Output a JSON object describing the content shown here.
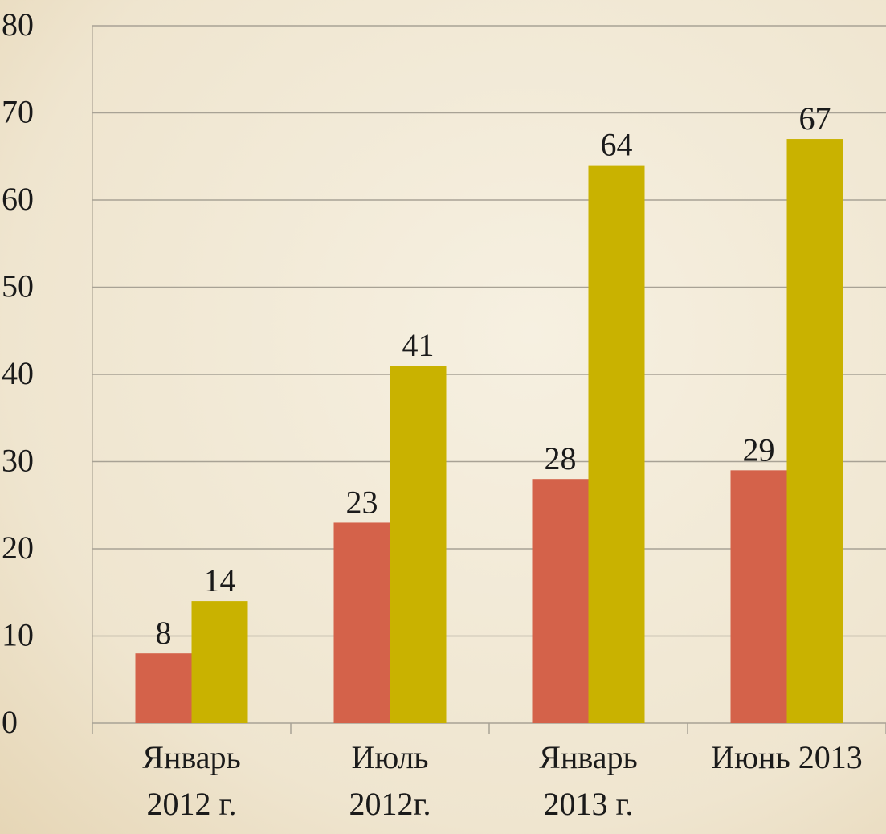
{
  "chart_data": {
    "type": "bar",
    "categories": [
      "Январь\n2012 г.",
      "Июль\n2012г.",
      "Январь\n2013 г.",
      "Июнь 2013"
    ],
    "series": [
      {
        "color": "#d4624a",
        "values": [
          8,
          23,
          28,
          29
        ]
      },
      {
        "color": "#c9b200",
        "values": [
          14,
          41,
          64,
          67
        ]
      }
    ],
    "ylim": [
      0,
      80
    ],
    "yticks": [
      0,
      10,
      20,
      30,
      40,
      50,
      60,
      70,
      80
    ],
    "grid": true
  }
}
